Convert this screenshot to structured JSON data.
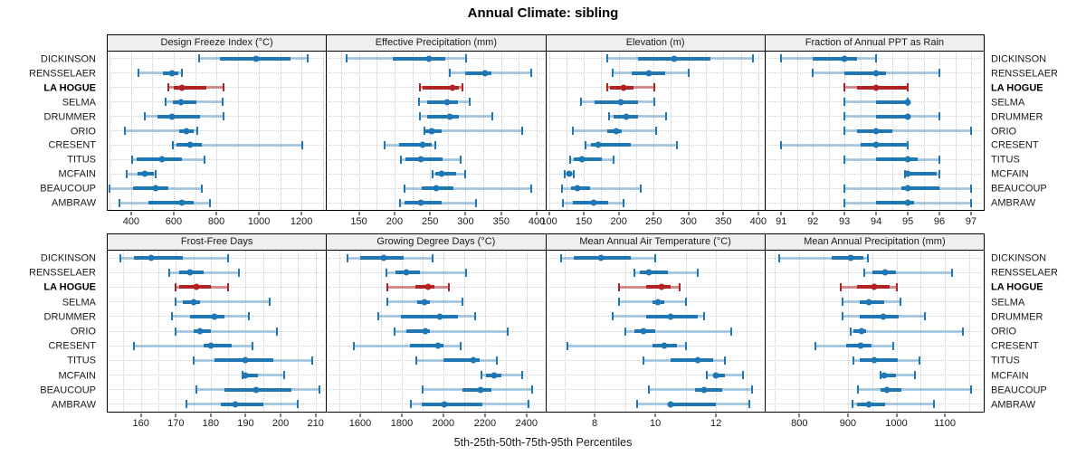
{
  "title": "Annual Climate: sibling",
  "caption": "5th-25th-50th-75th-95th Percentiles",
  "colors": {
    "site": "#1f77b4",
    "site_light": "rgba(31,119,180,0.35)",
    "highlight": "#b22222",
    "highlight_light": "rgba(178,34,34,0.5)",
    "header_bg": "#efefef",
    "grid": "#c6ccd2",
    "border": "#000000"
  },
  "chart_data": {
    "type": "scatter",
    "variant": "percentile-interval-dotplot",
    "title": "Annual Climate: sibling",
    "xlabel": "5th-25th-50th-75th-95th Percentiles",
    "legend": "none",
    "grid": "dotted",
    "percentiles": [
      "5th",
      "25th",
      "50th",
      "75th",
      "95th"
    ],
    "sites": [
      "DICKINSON",
      "RENSSELAER",
      "LA HOGUE",
      "SELMA",
      "DRUMMER",
      "ORIO",
      "CRESENT",
      "TITUS",
      "MCFAIN",
      "BEAUCOUP",
      "AMBRAW"
    ],
    "highlight_site": "LA HOGUE",
    "layout": {
      "rows": 2,
      "cols": 4,
      "site_labels": "both-sides"
    },
    "panels": [
      {
        "title": "Design Freeze Index (°C)",
        "xlim": [
          290,
          1315
        ],
        "ticks": [
          400,
          600,
          800,
          1000,
          1200
        ],
        "minor_step": 100,
        "values": [
          [
            720,
            815,
            985,
            1150,
            1230
          ],
          [
            435,
            550,
            590,
            620,
            640
          ],
          [
            575,
            600,
            640,
            755,
            835
          ],
          [
            560,
            595,
            635,
            705,
            830
          ],
          [
            465,
            525,
            590,
            725,
            835
          ],
          [
            370,
            625,
            660,
            695,
            710
          ],
          [
            595,
            615,
            675,
            730,
            1205
          ],
          [
            405,
            425,
            545,
            640,
            745
          ],
          [
            380,
            430,
            466,
            505,
            515
          ],
          [
            300,
            410,
            515,
            575,
            730
          ],
          [
            345,
            480,
            640,
            695,
            770
          ]
        ]
      },
      {
        "title": "Effective Precipitation (mm)",
        "xlim": [
          105,
          412
        ],
        "ticks": [
          150,
          200,
          250,
          300,
          350,
          400
        ],
        "minor_step": 25,
        "values": [
          [
            133,
            198,
            248,
            271,
            301
          ],
          [
            278,
            299,
            327,
            336,
            392
          ],
          [
            236,
            240,
            281,
            291,
            295
          ],
          [
            234,
            246,
            274,
            289,
            306
          ],
          [
            236,
            246,
            278,
            291,
            337
          ],
          [
            242,
            244,
            252,
            266,
            379
          ],
          [
            186,
            206,
            239,
            252,
            258
          ],
          [
            209,
            216,
            237,
            268,
            293
          ],
          [
            254,
            258,
            266,
            287,
            299
          ],
          [
            214,
            238,
            259,
            283,
            392
          ],
          [
            208,
            214,
            237,
            266,
            315
          ]
        ]
      },
      {
        "title": "Elevation (m)",
        "xlim": [
          96,
          409
        ],
        "ticks": [
          100,
          150,
          200,
          250,
          300,
          350,
          400
        ],
        "minor_step": 25,
        "values": [
          [
            184,
            228,
            279,
            332,
            392
          ],
          [
            191,
            219,
            243,
            266,
            300
          ],
          [
            184,
            187,
            207,
            221,
            251
          ],
          [
            146,
            166,
            203,
            228,
            251
          ],
          [
            186,
            193,
            211,
            228,
            268
          ],
          [
            134,
            183,
            196,
            204,
            254
          ],
          [
            152,
            160,
            170,
            217,
            284
          ],
          [
            130,
            136,
            147,
            176,
            193
          ],
          [
            122,
            126,
            129,
            132,
            136
          ],
          [
            119,
            132,
            141,
            159,
            232
          ],
          [
            120,
            134,
            164,
            185,
            207
          ]
        ]
      },
      {
        "title": "Fraction of Annual PPT as Rain",
        "xlim": [
          90.5,
          97.4
        ],
        "ticks": [
          91,
          92,
          93,
          94,
          95,
          96,
          97
        ],
        "minor_step": 0.5,
        "values": [
          [
            91,
            92,
            93,
            93.4,
            94
          ],
          [
            92,
            93,
            94,
            94.3,
            96
          ],
          [
            93,
            93.4,
            94,
            95,
            95
          ],
          [
            93,
            94,
            95,
            95,
            95
          ],
          [
            93,
            94,
            95,
            95,
            96
          ],
          [
            93,
            93.4,
            94,
            94.5,
            97
          ],
          [
            91,
            93.5,
            94,
            95,
            95
          ],
          [
            93,
            94,
            95,
            95.3,
            96
          ],
          [
            94.9,
            95,
            95,
            95.9,
            96
          ],
          [
            93,
            94.8,
            95,
            96,
            97
          ],
          [
            93,
            94,
            95,
            95.2,
            97
          ]
        ]
      },
      {
        "title": "Frost-Free Days",
        "xlim": [
          150.5,
          213
        ],
        "ticks": [
          160,
          170,
          180,
          190,
          200,
          210
        ],
        "minor_step": 5,
        "values": [
          [
            154,
            158,
            163,
            172,
            185
          ],
          [
            168,
            171,
            174,
            178,
            188
          ],
          [
            170,
            171,
            176,
            180,
            185
          ],
          [
            170,
            172,
            175,
            177,
            197
          ],
          [
            169,
            174,
            181,
            184,
            191
          ],
          [
            170,
            175,
            177,
            180,
            199
          ],
          [
            158,
            178,
            180,
            186,
            192
          ],
          [
            175,
            181,
            190,
            198,
            209
          ],
          [
            189,
            189.5,
            190,
            193.5,
            201
          ],
          [
            176,
            184,
            193,
            203,
            211
          ],
          [
            173,
            183,
            187,
            195,
            205
          ]
        ]
      },
      {
        "title": "Growing Degree Days (°C)",
        "xlim": [
          1440,
          2490
        ],
        "ticks": [
          1600,
          1800,
          2000,
          2200,
          2400
        ],
        "minor_step": 100,
        "values": [
          [
            1540,
            1600,
            1712,
            1810,
            1947
          ],
          [
            1726,
            1768,
            1820,
            1888,
            2108
          ],
          [
            1730,
            1865,
            1925,
            1955,
            2028
          ],
          [
            1730,
            1872,
            1909,
            1934,
            2091
          ],
          [
            1687,
            1796,
            1983,
            2070,
            2154
          ],
          [
            1764,
            1820,
            1914,
            1937,
            2308
          ],
          [
            1568,
            1838,
            1975,
            2000,
            2081
          ],
          [
            1870,
            2000,
            2143,
            2176,
            2255
          ],
          [
            2185,
            2205,
            2245,
            2280,
            2380
          ],
          [
            1902,
            2091,
            2179,
            2231,
            2427
          ],
          [
            1843,
            1895,
            2003,
            2189,
            2409
          ]
        ]
      },
      {
        "title": "Mean Annual Air Temperature (°C)",
        "xlim": [
          6.4,
          13.6
        ],
        "ticks": [
          8,
          10,
          12
        ],
        "minor_step": 1,
        "values": [
          [
            6.9,
            7.3,
            8.2,
            9.2,
            10.0
          ],
          [
            9.3,
            9.5,
            9.8,
            10.4,
            11.4
          ],
          [
            8.8,
            9.7,
            10.2,
            10.5,
            10.8
          ],
          [
            8.8,
            9.9,
            10.1,
            10.3,
            11.0
          ],
          [
            8.6,
            9.7,
            10.5,
            11.4,
            11.6
          ],
          [
            9.0,
            9.3,
            9.6,
            10.0,
            12.5
          ],
          [
            7.1,
            9.9,
            10.3,
            10.7,
            11.0
          ],
          [
            9.6,
            10.5,
            11.4,
            11.9,
            12.3
          ],
          [
            11.7,
            11.9,
            12.0,
            12.3,
            12.9
          ],
          [
            9.8,
            11.3,
            11.6,
            12.2,
            13.2
          ],
          [
            9.4,
            10.4,
            10.5,
            12.0,
            13.1
          ]
        ]
      },
      {
        "title": "Mean Annual Precipitation (mm)",
        "xlim": [
          730,
          1180
        ],
        "ticks": [
          800,
          900,
          1000,
          1100
        ],
        "minor_step": 50,
        "values": [
          [
            759,
            866,
            905,
            932,
            941
          ],
          [
            934,
            950,
            977,
            1000,
            1114
          ],
          [
            886,
            918,
            954,
            986,
            1000
          ],
          [
            889,
            925,
            944,
            974,
            1009
          ],
          [
            889,
            925,
            973,
            1005,
            1059
          ],
          [
            906,
            912,
            928,
            937,
            1138
          ],
          [
            833,
            897,
            926,
            949,
            994
          ],
          [
            912,
            925,
            954,
            1002,
            1048
          ],
          [
            968,
            971,
            975,
            999,
            1039
          ],
          [
            920,
            968,
            980,
            1011,
            1153
          ],
          [
            909,
            919,
            943,
            977,
            1078
          ]
        ]
      }
    ]
  }
}
